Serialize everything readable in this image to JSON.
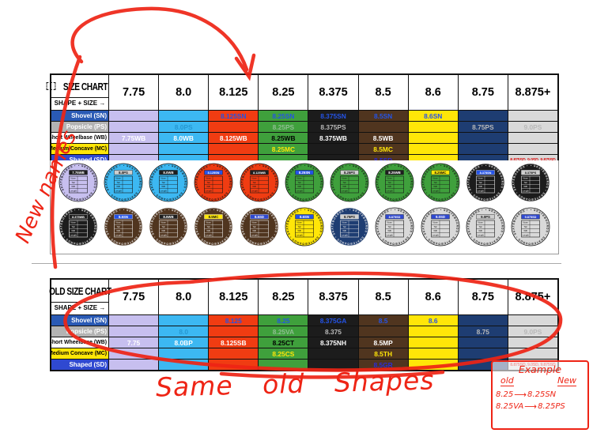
{
  "shape_size_label": "SHAPE + SIZE →",
  "columns": {
    "headers": [
      "7.75",
      "8.0",
      "8.125",
      "8.25",
      "8.375",
      "8.5",
      "8.6",
      "8.75",
      "8.875+"
    ],
    "colors": [
      "#c7bfef",
      "#3cb8f2",
      "#f03c12",
      "#3fa03c",
      "#1c1c1c",
      "#50351f",
      "#ffe608",
      "#1e3d72",
      "#d9d9d9"
    ]
  },
  "shape_rows": [
    {
      "key": "sn",
      "label": "Shovel (SN)",
      "label_bg": "#2a5ab5",
      "label_fg": "#ffffff"
    },
    {
      "key": "ps",
      "label": "Popsicle (PS)",
      "label_bg": "#b3b3b3",
      "label_fg": "#ffffff"
    },
    {
      "key": "wb",
      "label": "Short Wheelbase (WB)",
      "label_bg": "#ffffff",
      "label_fg": "#000000"
    },
    {
      "key": "mc",
      "label": "Medium Concave (MC)",
      "label_bg": "#ffe608",
      "label_fg": "#000000"
    },
    {
      "key": "sd",
      "label": "Shaped (SD)",
      "label_bg": "#2f49d1",
      "label_fg": "#ffffff"
    }
  ],
  "cell_styles": {
    "row_text": {
      "sn": "#2453e8",
      "ps": "#b9b9b9",
      "wb": "#ffffff",
      "mc": "#ffe608",
      "sd": "#2c2cd8"
    },
    "overrides": {
      "wb.3": "#000000",
      "sd.8": "#dd1111",
      "ps.1": "#2698d2",
      "ps.3": "#8fbe92"
    }
  },
  "charts": {
    "new": {
      "title": "SIZE CHART",
      "cells": {
        "sn": [
          "",
          "",
          "8.125SN",
          "8.25SN",
          "8.375SN",
          "8.5SN",
          "8.6SN",
          "",
          ""
        ],
        "ps": [
          "",
          "8.0PS",
          "",
          "8.25PS",
          "8.375PS",
          "",
          "",
          "8.75PS",
          "9.0PS"
        ],
        "wb": [
          "7.75WB",
          "8.0WB",
          "8.125WB",
          "8.25WB",
          "8.375WB",
          "8.5WB",
          "",
          "",
          ""
        ],
        "mc": [
          "",
          "",
          "",
          "8.25MC",
          "",
          "8.5MC",
          "",
          "",
          ""
        ],
        "sd": [
          "",
          "",
          "",
          "",
          "",
          "8.5SD",
          "",
          "",
          "8.875SD, 9.0SD, 9.875SD"
        ]
      }
    },
    "old": {
      "title": "OLD SIZE CHART",
      "cells": {
        "sn": [
          "",
          "",
          "8.125",
          "8.25",
          "8.375GA",
          "8.5",
          "8.6",
          "",
          ""
        ],
        "ps": [
          "",
          "8.0",
          "",
          "8.25VA",
          "8.375",
          "",
          "",
          "8.75",
          "9.0PS"
        ],
        "wb": [
          "7.75",
          "8.0BP",
          "8.125SB",
          "8.25CT",
          "8.375NH",
          "8.5MP",
          "",
          "",
          ""
        ],
        "mc": [
          "",
          "",
          "",
          "8.25CS",
          "",
          "8.5TH",
          "",
          "",
          ""
        ],
        "sd": [
          "",
          "",
          "",
          "",
          "",
          "8.5GR",
          "",
          "",
          "8.875SD, 9.0SD, 9.875SD"
        ]
      }
    }
  },
  "badges": {
    "ring_text": "SKATEBOARDS",
    "spec_labels": [
      "Nose",
      "Tail",
      "WB",
      "Length"
    ],
    "dark_colors": [
      "#1c1c1c",
      "#50351f",
      "#1e3d72"
    ],
    "chip_styles": {
      "SN": {
        "bg": "#2453e8",
        "fg": "#ffffff"
      },
      "PS": {
        "bg": "#cfcfcf",
        "fg": "#111111"
      },
      "WB": {
        "bg": "#1e1e1e",
        "fg": "#ffffff"
      },
      "MC": {
        "bg": "#ffe608",
        "fg": "#111111"
      },
      "SD": {
        "bg": "#2f49d1",
        "fg": "#ffffff"
      }
    },
    "rows": [
      [
        {
          "label": "7.75WB",
          "color": "#c7bfef"
        },
        {
          "label": "8.0PS",
          "color": "#3cb8f2"
        },
        {
          "label": "8.0WB",
          "color": "#3cb8f2"
        },
        {
          "label": "8.125SN",
          "color": "#f03c12"
        },
        {
          "label": "8.125WB",
          "color": "#f03c12"
        },
        {
          "label": "8.25SN",
          "color": "#3fa03c"
        },
        {
          "label": "8.25PS",
          "color": "#3fa03c"
        },
        {
          "label": "8.25WB",
          "color": "#3fa03c"
        },
        {
          "label": "8.25MC",
          "color": "#3fa03c"
        },
        {
          "label": "8.375SN",
          "color": "#1c1c1c"
        },
        {
          "label": "8.375PS",
          "color": "#1c1c1c"
        }
      ],
      [
        {
          "label": "8.375WB",
          "color": "#1c1c1c"
        },
        {
          "label": "8.5SN",
          "color": "#50351f"
        },
        {
          "label": "8.5WB",
          "color": "#50351f"
        },
        {
          "label": "8.5MC",
          "color": "#50351f"
        },
        {
          "label": "8.5SD",
          "color": "#50351f"
        },
        {
          "label": "8.6SN",
          "color": "#ffe608"
        },
        {
          "label": "8.75PS",
          "color": "#1e3d72"
        },
        {
          "label": "8.875SD",
          "color": "#d9d9d9"
        },
        {
          "label": "9.0SD",
          "color": "#d9d9d9"
        },
        {
          "label": "9.0PS",
          "color": "#d9d9d9"
        },
        {
          "label": "9.875SD",
          "color": "#d9d9d9"
        }
      ]
    ]
  },
  "annotations": {
    "marker_red": "#ee2415",
    "new_names": "New names",
    "same_old_shapes": "Same old Shapes",
    "note": {
      "title": "Example",
      "col_old": "old",
      "col_new": "New",
      "arrow": "⟶",
      "rows": [
        {
          "old": "8.25",
          "new": "8.25SN"
        },
        {
          "old": "8.25VA",
          "new": "8.25PS"
        }
      ]
    }
  }
}
